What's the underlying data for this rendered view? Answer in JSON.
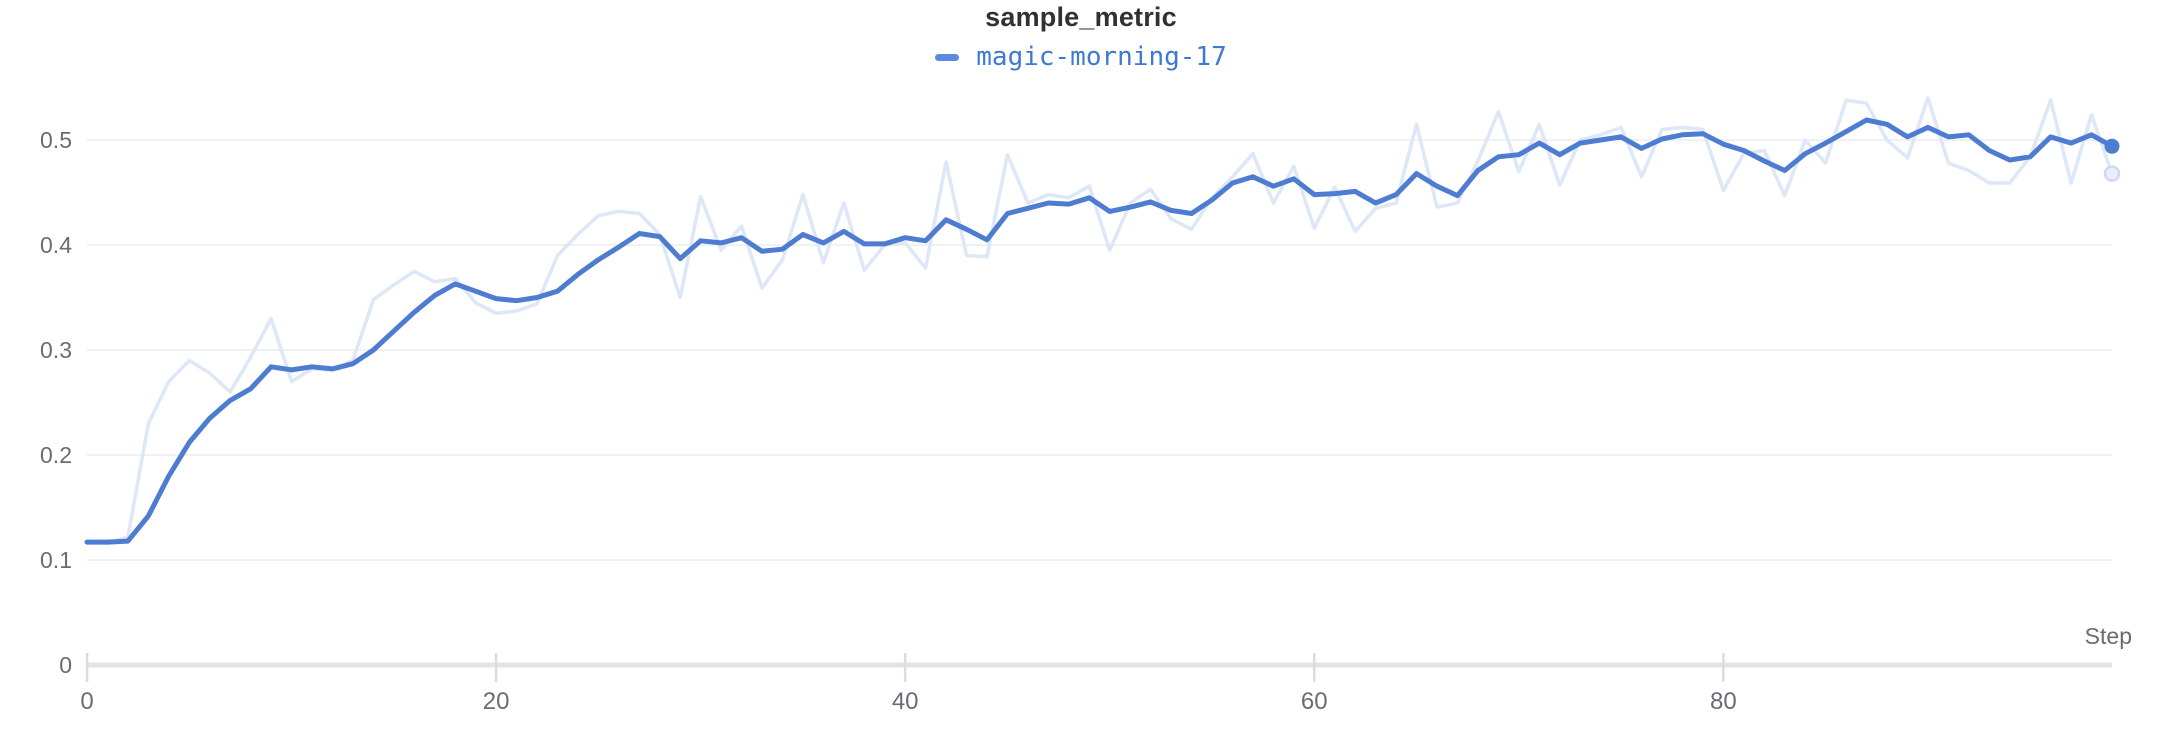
{
  "panel": {
    "title": "sample_metric"
  },
  "legend": {
    "items": [
      {
        "label": "magic-morning-17"
      }
    ]
  },
  "axis": {
    "x_label": "Step"
  },
  "colors": {
    "smoothed_line": "#4d7cd0",
    "raw_line": "#dde7f8",
    "raw_end_ring_stroke": "#ccd9f0",
    "raw_end_ring_fill": "#e9f0fb",
    "grid": "#ededf0",
    "axis_line": "#e3e3e7",
    "tick_mark": "#dadce1",
    "tick_label": "#6b6b76",
    "title_text": "#303035",
    "legend_text": "#3e79d2",
    "legend_swatch": "#5c8bdd"
  },
  "chart_data": {
    "type": "line",
    "title": "sample_metric",
    "xlabel": "Step",
    "ylabel": "",
    "xlim": [
      0,
      99
    ],
    "ylim": [
      0,
      0.55
    ],
    "x_ticks": [
      0,
      20,
      40,
      60,
      80
    ],
    "y_ticks": [
      0,
      0.1,
      0.2,
      0.3,
      0.4,
      0.5
    ],
    "grid": "horizontal-only",
    "legend_position": "top-center",
    "x_start": 0,
    "x_step": 1,
    "series": [
      {
        "name": "magic-morning-17 (raw, unsmoothed)",
        "role": "raw",
        "values": [
          0.117,
          0.116,
          0.122,
          0.23,
          0.27,
          0.29,
          0.278,
          0.26,
          0.293,
          0.33,
          0.27,
          0.282,
          0.281,
          0.29,
          0.348,
          0.362,
          0.375,
          0.365,
          0.368,
          0.345,
          0.335,
          0.337,
          0.344,
          0.39,
          0.41,
          0.428,
          0.432,
          0.43,
          0.41,
          0.35,
          0.446,
          0.395,
          0.418,
          0.359,
          0.386,
          0.448,
          0.383,
          0.44,
          0.376,
          0.4,
          0.402,
          0.378,
          0.479,
          0.39,
          0.389,
          0.486,
          0.44,
          0.448,
          0.445,
          0.456,
          0.395,
          0.44,
          0.453,
          0.425,
          0.415,
          0.445,
          0.465,
          0.487,
          0.44,
          0.475,
          0.416,
          0.455,
          0.413,
          0.435,
          0.44,
          0.515,
          0.436,
          0.44,
          0.48,
          0.527,
          0.47,
          0.515,
          0.457,
          0.5,
          0.505,
          0.512,
          0.465,
          0.51,
          0.512,
          0.51,
          0.452,
          0.487,
          0.49,
          0.447,
          0.5,
          0.478,
          0.538,
          0.535,
          0.5,
          0.483,
          0.54,
          0.478,
          0.471,
          0.459,
          0.459,
          0.484,
          0.538,
          0.459,
          0.524,
          0.468
        ]
      },
      {
        "name": "magic-morning-17",
        "role": "smoothed",
        "values": [
          0.117,
          0.117,
          0.118,
          0.142,
          0.18,
          0.212,
          0.235,
          0.252,
          0.263,
          0.284,
          0.281,
          0.284,
          0.282,
          0.287,
          0.3,
          0.318,
          0.336,
          0.352,
          0.363,
          0.356,
          0.349,
          0.347,
          0.35,
          0.356,
          0.372,
          0.386,
          0.398,
          0.411,
          0.408,
          0.387,
          0.404,
          0.402,
          0.407,
          0.394,
          0.396,
          0.41,
          0.402,
          0.413,
          0.401,
          0.401,
          0.407,
          0.404,
          0.424,
          0.415,
          0.405,
          0.43,
          0.435,
          0.44,
          0.439,
          0.445,
          0.432,
          0.436,
          0.441,
          0.433,
          0.43,
          0.443,
          0.459,
          0.465,
          0.456,
          0.463,
          0.448,
          0.449,
          0.451,
          0.44,
          0.448,
          0.468,
          0.456,
          0.447,
          0.471,
          0.484,
          0.486,
          0.497,
          0.486,
          0.497,
          0.5,
          0.503,
          0.492,
          0.501,
          0.505,
          0.506,
          0.496,
          0.49,
          0.48,
          0.471,
          0.487,
          0.497,
          0.508,
          0.519,
          0.515,
          0.503,
          0.512,
          0.503,
          0.505,
          0.49,
          0.481,
          0.484,
          0.503,
          0.497,
          0.505,
          0.494
        ]
      }
    ]
  }
}
